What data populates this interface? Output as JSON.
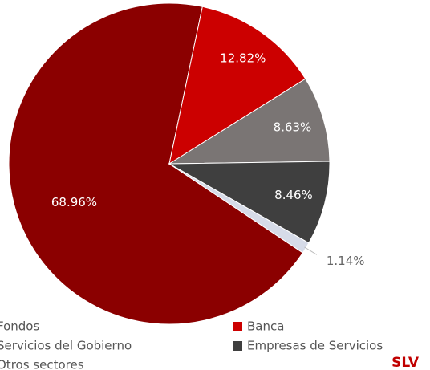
{
  "chart_data": {
    "type": "pie",
    "categories": [
      "Fondos",
      "Banca",
      "Servicios del Gobierno",
      "Empresas de Servicios",
      "Otros sectores"
    ],
    "values": [
      68.96,
      12.82,
      8.63,
      8.46,
      1.14
    ],
    "value_labels": [
      "68.96%",
      "12.82%",
      "8.63%",
      "8.46%",
      "1.14%"
    ],
    "colors": [
      "#8b0000",
      "#cc0000",
      "#7a7574",
      "#3f3f3f",
      "#d6dbe8"
    ],
    "legend": "bottom",
    "annotation": "SLV"
  }
}
